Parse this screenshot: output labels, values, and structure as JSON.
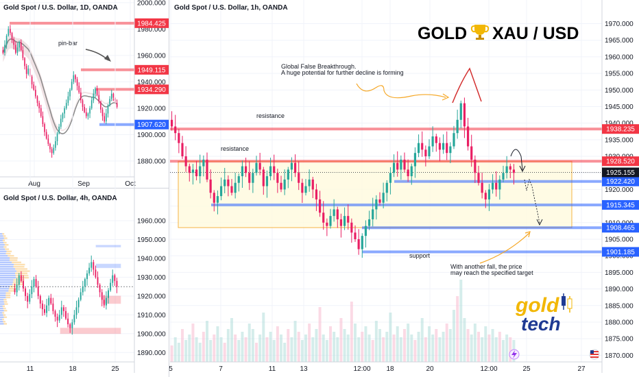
{
  "brand": {
    "headline_left": "GOLD",
    "headline_right": "XAU / USD",
    "trophy_icon": "trophy-icon",
    "logo_top": "gold",
    "logo_bottom": "tech",
    "logo_color_gold": "#f2b705",
    "logo_color_tech": "#1f3a93"
  },
  "colors": {
    "bull": "#26a69a",
    "bear": "#e91e63",
    "resistance": "#f23645",
    "support": "#2962ff",
    "zone_fill": "#fffbe0",
    "zone_border": "#f5a623",
    "price_tag": "#131722"
  },
  "chart_data": [
    {
      "id": "daily",
      "type": "candlestick",
      "title": "Gold Spot / U.S. Dollar, 1D, OANDA",
      "x_ticks": [
        "Aug",
        "Sep",
        "Oct"
      ],
      "ylim": [
        1868,
        2002
      ],
      "y_ticks": [
        1880,
        1900,
        1920,
        1940,
        1960,
        1980,
        2000
      ],
      "y_tick_labels": [
        "1880.000",
        "1900.000",
        "1920.000",
        "1940.000",
        "1960.000",
        "1980.000",
        "2000.000"
      ],
      "levels": [
        {
          "value": 1984.425,
          "label": "1984.425",
          "kind": "resistance"
        },
        {
          "value": 1949.115,
          "label": "1949.115",
          "kind": "resistance"
        },
        {
          "value": 1934.29,
          "label": "1934.290",
          "kind": "resistance"
        },
        {
          "value": 1907.62,
          "label": "1907.620",
          "kind": "support"
        }
      ],
      "annotations": [
        {
          "text": "pin-bar"
        }
      ],
      "series": [
        {
          "name": "",
          "kind": "close",
          "values": [
            1962,
            1968,
            1975,
            1980,
            1977,
            1972,
            1968,
            1962,
            1966,
            1970,
            1964,
            1958,
            1952,
            1946,
            1950,
            1944,
            1938,
            1934,
            1929,
            1924,
            1920,
            1914,
            1908,
            1902,
            1897,
            1893,
            1889,
            1886,
            1890,
            1895,
            1901,
            1906,
            1912,
            1916,
            1920,
            1924,
            1929,
            1934,
            1940,
            1945,
            1942,
            1937,
            1932,
            1926,
            1921,
            1917,
            1914,
            1916,
            1920,
            1926,
            1931,
            1935,
            1930,
            1925,
            1919,
            1914,
            1910,
            1916,
            1922,
            1927,
            1931,
            1928,
            1924,
            1921
          ]
        }
      ]
    },
    {
      "id": "h4",
      "type": "candlestick",
      "title": "Gold Spot / U.S. Dollar, 4h, OANDA",
      "x_ticks": [
        "11",
        "18",
        "25"
      ],
      "ylim": [
        1885,
        1968
      ],
      "y_ticks": [
        1890,
        1900,
        1910,
        1920,
        1930,
        1940,
        1950,
        1960
      ],
      "y_tick_labels": [
        "1890.000",
        "1900.000",
        "1910.000",
        "1920.000",
        "1930.000",
        "1940.000",
        "1950.000",
        "1960.000"
      ],
      "series": [
        {
          "name": "",
          "kind": "close",
          "values": [
            1922,
            1926,
            1931,
            1928,
            1924,
            1920,
            1917,
            1921,
            1925,
            1929,
            1925,
            1920,
            1916,
            1913,
            1911,
            1915,
            1919,
            1916,
            1912,
            1909,
            1907,
            1910,
            1914,
            1912,
            1908,
            1905,
            1903,
            1906,
            1910,
            1914,
            1918,
            1922,
            1925,
            1929,
            1932,
            1935,
            1938,
            1934,
            1930,
            1926,
            1922,
            1918,
            1915,
            1919,
            1923,
            1927,
            1931,
            1928,
            1925
          ]
        }
      ]
    },
    {
      "id": "h1",
      "type": "candlestick",
      "title": "Gold Spot / U.S. Dollar, 1h, OANDA",
      "x_ticks": [
        "5",
        "7",
        "11",
        "13",
        "12:00",
        "18",
        "20",
        "12:00",
        "25",
        "27"
      ],
      "ylim": [
        1868,
        1973
      ],
      "y_ticks": [
        1870,
        1875,
        1880,
        1885,
        1890,
        1895,
        1900,
        1905,
        1910,
        1915,
        1920,
        1925,
        1930,
        1935,
        1940,
        1945,
        1950,
        1955,
        1960,
        1965,
        1970
      ],
      "y_tick_labels": [
        "1870.000",
        "1875.000",
        "1880.000",
        "1885.000",
        "1890.000",
        "1895.000",
        "1900.000",
        "1905.000",
        "1910.000",
        "1915.000",
        "1920.000",
        "1925.000",
        "1930.000",
        "1935.000",
        "1940.000",
        "1945.000",
        "1950.000",
        "1955.000",
        "1960.000",
        "1965.000",
        "1970.000"
      ],
      "levels": [
        {
          "value": 1938.235,
          "label": "1938.235",
          "kind": "resistance"
        },
        {
          "value": 1928.52,
          "label": "1928.520",
          "kind": "resistance"
        },
        {
          "value": 1922.42,
          "label": "1922.420",
          "kind": "support"
        },
        {
          "value": 1915.345,
          "label": "1915.345",
          "kind": "support"
        },
        {
          "value": 1908.465,
          "label": "1908.465",
          "kind": "support"
        },
        {
          "value": 1901.185,
          "label": "1901.185",
          "kind": "support"
        }
      ],
      "last_price": {
        "value": 1925.155,
        "label": "1925.155"
      },
      "zone": {
        "top": 1928.5,
        "bottom": 1908.5
      },
      "annotations": [
        {
          "text": "resistance"
        },
        {
          "text": "resistance"
        },
        {
          "text": "support"
        },
        {
          "text": "Global False Breakthrough."
        },
        {
          "text": "A huge potential for further decline is forming"
        },
        {
          "text": "With another fall, the price"
        },
        {
          "text": "may reach the specified target"
        }
      ],
      "series": [
        {
          "name": "",
          "kind": "close",
          "values": [
            1939,
            1937,
            1934,
            1930,
            1927,
            1925,
            1926,
            1924,
            1927,
            1929,
            1923,
            1919,
            1916,
            1918,
            1921,
            1923,
            1921,
            1919,
            1922,
            1924,
            1927,
            1925,
            1922,
            1925,
            1928,
            1926,
            1921,
            1924,
            1927,
            1925,
            1922,
            1920,
            1923,
            1926,
            1928,
            1925,
            1922,
            1919,
            1921,
            1923,
            1920,
            1917,
            1913,
            1910,
            1909,
            1912,
            1914,
            1911,
            1909,
            1912,
            1910,
            1907,
            1905,
            1902,
            1906,
            1909,
            1911,
            1914,
            1917,
            1916,
            1919,
            1922,
            1925,
            1928,
            1926,
            1929,
            1926,
            1924,
            1927,
            1931,
            1934,
            1932,
            1930,
            1933,
            1936,
            1934,
            1932,
            1934,
            1931,
            1933,
            1937,
            1941,
            1946,
            1939,
            1933,
            1929,
            1925,
            1922,
            1919,
            1917,
            1920,
            1922,
            1920,
            1923,
            1925,
            1927,
            1926,
            1925
          ]
        },
        {
          "name": "",
          "kind": "volume",
          "values": [
            6,
            9,
            7,
            12,
            8,
            10,
            14,
            9,
            7,
            11,
            15,
            8,
            10,
            13,
            9,
            7,
            12,
            16,
            10,
            8,
            11,
            9,
            14,
            12,
            7,
            10,
            18,
            9,
            11,
            8,
            13,
            10,
            7,
            12,
            9,
            15,
            11,
            8,
            10,
            14,
            9,
            12,
            20,
            10,
            8,
            13,
            11,
            9,
            16,
            12,
            10,
            22,
            14,
            9,
            11,
            13,
            10,
            8,
            15,
            12,
            9,
            11,
            18,
            10,
            13,
            9,
            12,
            14,
            10,
            8,
            11,
            16,
            9,
            13,
            10,
            12,
            9,
            11,
            14,
            12,
            19,
            24,
            30,
            16,
            12,
            10,
            14,
            11,
            9,
            13,
            10,
            12,
            9,
            11,
            8,
            10,
            9,
            8
          ]
        }
      ]
    }
  ]
}
